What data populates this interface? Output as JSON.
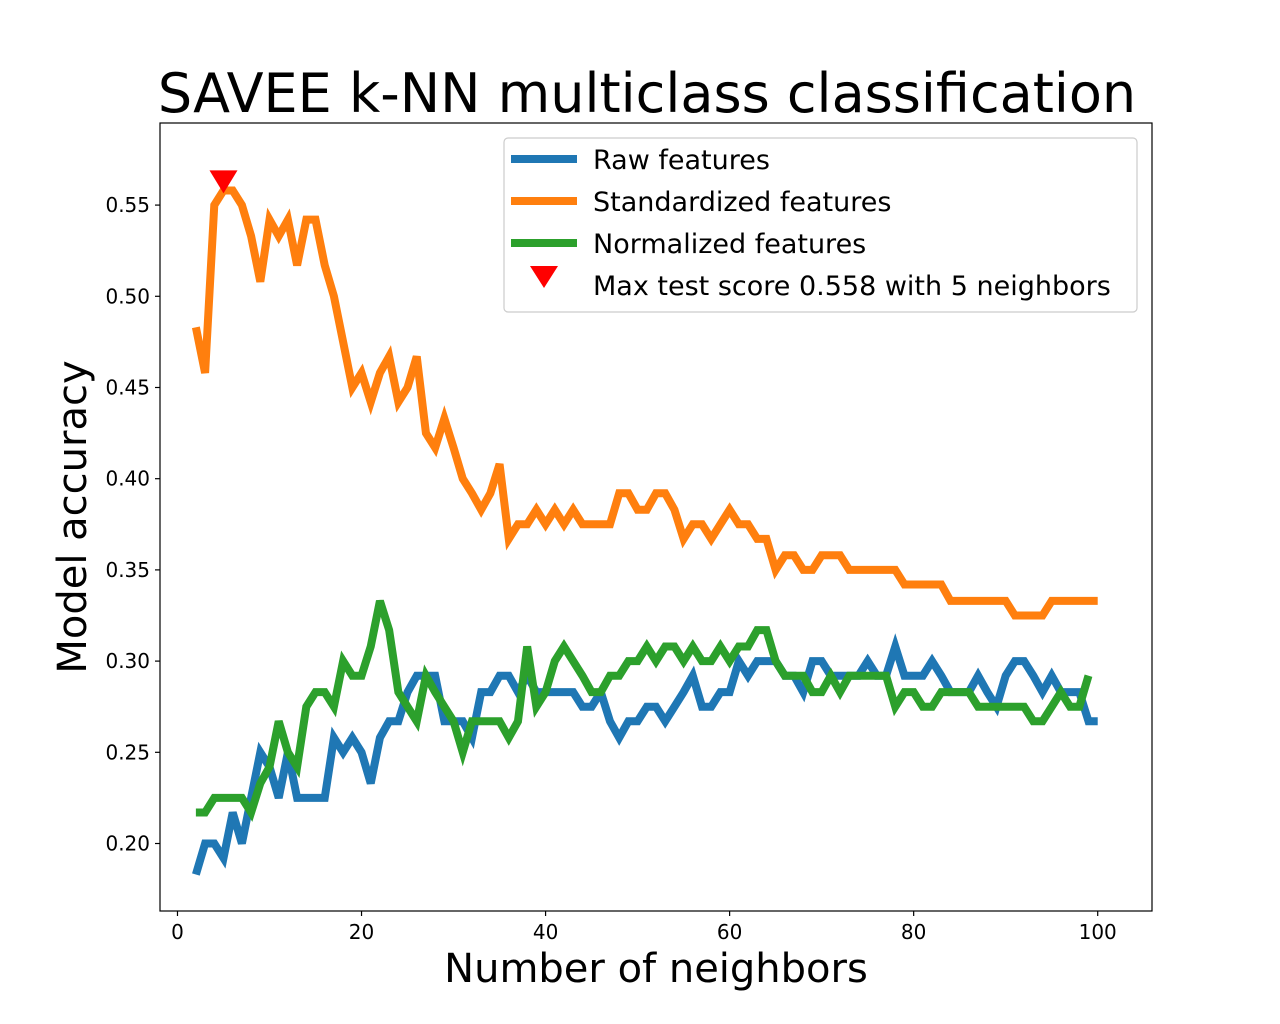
{
  "chart_data": {
    "type": "line",
    "title": "SAVEE k-NN multiclass classification",
    "xlabel": "Number of neighbors",
    "ylabel": "Model accuracy",
    "xlim": [
      -1.9,
      105.9
    ],
    "ylim": [
      0.163,
      0.595
    ],
    "xticks": [
      0,
      20,
      40,
      60,
      80,
      100
    ],
    "yticks": [
      0.2,
      0.25,
      0.3,
      0.35,
      0.4,
      0.45,
      0.5,
      0.55
    ],
    "xtick_labels": [
      "0",
      "20",
      "40",
      "60",
      "80",
      "100"
    ],
    "ytick_labels": [
      "0.20",
      "0.25",
      "0.30",
      "0.35",
      "0.40",
      "0.45",
      "0.50",
      "0.55"
    ],
    "legend_position": "upper right",
    "x_start": 2,
    "series": [
      {
        "name": "Raw features",
        "color": "#1f77b4",
        "values": [
          0.183,
          0.2,
          0.2,
          0.192,
          0.217,
          0.2,
          0.225,
          0.25,
          0.242,
          0.225,
          0.25,
          0.225,
          0.225,
          0.225,
          0.225,
          0.258,
          0.25,
          0.258,
          0.25,
          0.233,
          0.258,
          0.267,
          0.267,
          0.283,
          0.292,
          0.292,
          0.292,
          0.267,
          0.267,
          0.267,
          0.258,
          0.283,
          0.283,
          0.292,
          0.292,
          0.283,
          0.292,
          0.283,
          0.283,
          0.283,
          0.283,
          0.283,
          0.275,
          0.275,
          0.283,
          0.267,
          0.258,
          0.267,
          0.267,
          0.275,
          0.275,
          0.267,
          0.275,
          0.283,
          0.292,
          0.275,
          0.275,
          0.283,
          0.283,
          0.3,
          0.292,
          0.3,
          0.3,
          0.3,
          0.292,
          0.292,
          0.283,
          0.3,
          0.3,
          0.292,
          0.292,
          0.292,
          0.292,
          0.3,
          0.292,
          0.292,
          0.308,
          0.292,
          0.292,
          0.292,
          0.3,
          0.292,
          0.283,
          0.283,
          0.283,
          0.292,
          0.283,
          0.275,
          0.292,
          0.3,
          0.3,
          0.292,
          0.283,
          0.292,
          0.283,
          0.283,
          0.283,
          0.267,
          0.267
        ]
      },
      {
        "name": "Standardized features",
        "color": "#ff7f0e",
        "values": [
          0.483,
          0.458,
          0.55,
          0.558,
          0.558,
          0.55,
          0.533,
          0.508,
          0.542,
          0.533,
          0.542,
          0.517,
          0.542,
          0.542,
          0.517,
          0.5,
          0.475,
          0.45,
          0.458,
          0.442,
          0.458,
          0.467,
          0.442,
          0.45,
          0.467,
          0.425,
          0.417,
          0.433,
          0.417,
          0.4,
          0.392,
          0.383,
          0.392,
          0.408,
          0.367,
          0.375,
          0.375,
          0.383,
          0.375,
          0.383,
          0.375,
          0.383,
          0.375,
          0.375,
          0.375,
          0.375,
          0.392,
          0.392,
          0.383,
          0.383,
          0.392,
          0.392,
          0.383,
          0.367,
          0.375,
          0.375,
          0.367,
          0.375,
          0.383,
          0.375,
          0.375,
          0.367,
          0.367,
          0.35,
          0.358,
          0.358,
          0.35,
          0.35,
          0.358,
          0.358,
          0.358,
          0.35,
          0.35,
          0.35,
          0.35,
          0.35,
          0.35,
          0.342,
          0.342,
          0.342,
          0.342,
          0.342,
          0.333,
          0.333,
          0.333,
          0.333,
          0.333,
          0.333,
          0.333,
          0.325,
          0.325,
          0.325,
          0.325,
          0.333,
          0.333,
          0.333,
          0.333,
          0.333,
          0.333
        ]
      },
      {
        "name": "Normalized features",
        "color": "#2ca02c",
        "values": [
          0.217,
          0.217,
          0.225,
          0.225,
          0.225,
          0.225,
          0.217,
          0.233,
          0.242,
          0.267,
          0.25,
          0.242,
          0.275,
          0.283,
          0.283,
          0.275,
          0.3,
          0.292,
          0.292,
          0.308,
          0.333,
          0.317,
          0.283,
          0.275,
          0.267,
          0.292,
          0.283,
          0.275,
          0.267,
          0.25,
          0.267,
          0.267,
          0.267,
          0.267,
          0.258,
          0.267,
          0.308,
          0.275,
          0.283,
          0.3,
          0.308,
          0.3,
          0.292,
          0.283,
          0.283,
          0.292,
          0.292,
          0.3,
          0.3,
          0.308,
          0.3,
          0.308,
          0.308,
          0.3,
          0.308,
          0.3,
          0.3,
          0.308,
          0.3,
          0.308,
          0.308,
          0.317,
          0.317,
          0.3,
          0.292,
          0.292,
          0.292,
          0.283,
          0.283,
          0.292,
          0.283,
          0.292,
          0.292,
          0.292,
          0.292,
          0.292,
          0.275,
          0.283,
          0.283,
          0.275,
          0.275,
          0.283,
          0.283,
          0.283,
          0.283,
          0.275,
          0.275,
          0.275,
          0.275,
          0.275,
          0.275,
          0.267,
          0.267,
          0.275,
          0.283,
          0.275,
          0.275,
          0.292
        ]
      }
    ],
    "marker": {
      "label": "Max test score 0.558 with 5 neighbors",
      "color": "#ff0000",
      "shape": "triangle-down",
      "x": 5,
      "y": 0.563
    }
  }
}
